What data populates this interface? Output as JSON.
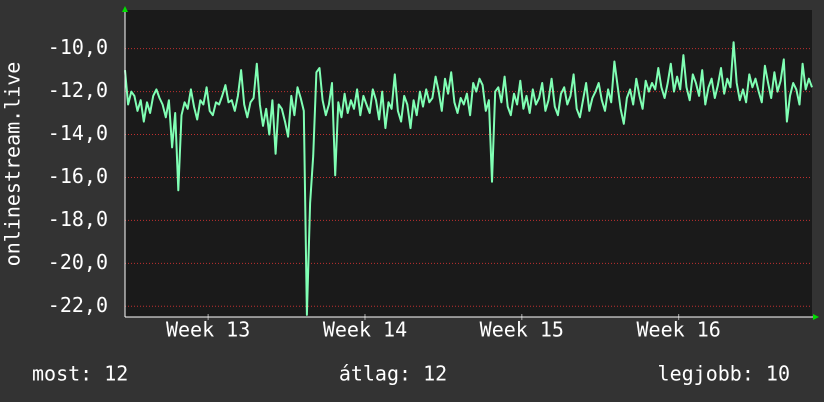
{
  "chart_data": {
    "type": "line",
    "y_label": "onlinestream.live",
    "color": "#80ffb4",
    "grid": true,
    "values": [
      -11.0,
      -12.6,
      -12.0,
      -12.2,
      -12.9,
      -12.4,
      -13.4,
      -12.5,
      -13.0,
      -12.2,
      -11.9,
      -12.3,
      -12.6,
      -13.2,
      -12.4,
      -14.6,
      -13.0,
      -16.6,
      -13.1,
      -12.5,
      -12.8,
      -11.9,
      -12.7,
      -13.3,
      -12.4,
      -12.6,
      -11.8,
      -12.9,
      -13.1,
      -12.5,
      -12.6,
      -12.2,
      -11.7,
      -12.5,
      -12.4,
      -12.9,
      -12.2,
      -11.0,
      -12.6,
      -13.2,
      -12.5,
      -12.3,
      -10.7,
      -12.6,
      -13.6,
      -12.8,
      -14.0,
      -12.4,
      -14.9,
      -12.6,
      -12.8,
      -13.4,
      -14.1,
      -12.2,
      -13.1,
      -11.8,
      -12.3,
      -12.9,
      -22.4,
      -17.2,
      -15.0,
      -11.1,
      -10.9,
      -12.4,
      -13.1,
      -12.6,
      -11.6,
      -15.9,
      -12.5,
      -13.2,
      -12.1,
      -13.0,
      -12.4,
      -12.8,
      -11.9,
      -13.1,
      -12.2,
      -12.6,
      -13.0,
      -11.9,
      -12.4,
      -13.3,
      -12.0,
      -13.7,
      -12.5,
      -12.8,
      -11.2,
      -12.9,
      -13.4,
      -12.2,
      -12.6,
      -13.7,
      -12.4,
      -13.1,
      -12.0,
      -12.7,
      -11.9,
      -12.5,
      -12.3,
      -11.3,
      -12.0,
      -12.9,
      -11.4,
      -12.1,
      -11.1,
      -12.5,
      -13.0,
      -12.3,
      -12.6,
      -12.1,
      -13.1,
      -11.6,
      -12.0,
      -11.4,
      -11.7,
      -12.9,
      -12.4,
      -16.2,
      -12.0,
      -11.8,
      -12.5,
      -11.3,
      -12.7,
      -13.1,
      -12.1,
      -12.6,
      -11.5,
      -12.8,
      -12.2,
      -13.0,
      -11.9,
      -12.6,
      -12.3,
      -11.6,
      -12.9,
      -12.4,
      -11.4,
      -12.7,
      -13.1,
      -12.1,
      -11.8,
      -12.6,
      -12.2,
      -11.2,
      -12.8,
      -13.2,
      -12.4,
      -11.6,
      -12.9,
      -12.3,
      -12.0,
      -11.6,
      -12.4,
      -12.9,
      -11.9,
      -12.5,
      -10.6,
      -11.7,
      -12.8,
      -13.5,
      -12.3,
      -11.9,
      -12.6,
      -11.4,
      -12.2,
      -12.8,
      -11.5,
      -12.0,
      -11.6,
      -11.9,
      -10.9,
      -11.8,
      -12.3,
      -11.6,
      -10.7,
      -12.0,
      -11.3,
      -11.9,
      -10.3,
      -11.8,
      -12.4,
      -11.2,
      -11.6,
      -12.2,
      -11.0,
      -12.6,
      -11.8,
      -11.4,
      -12.3,
      -11.7,
      -10.9,
      -12.1,
      -11.4,
      -11.8,
      -9.7,
      -11.6,
      -12.4,
      -11.9,
      -12.5,
      -11.2,
      -11.8,
      -11.4,
      -12.0,
      -12.5,
      -10.8,
      -11.6,
      -12.3,
      -11.1,
      -12.0,
      -11.5,
      -10.5,
      -13.4,
      -12.2,
      -11.6,
      -11.9,
      -12.6,
      -10.7,
      -11.9,
      -11.4,
      -11.8
    ],
    "xlim": [
      0,
      219
    ],
    "xticks": [
      {
        "value": 26.5,
        "label": "Week 13"
      },
      {
        "value": 76.5,
        "label": "Week 14"
      },
      {
        "value": 126.5,
        "label": "Week 15"
      },
      {
        "value": 176.5,
        "label": "Week 16"
      }
    ],
    "ylim": [
      -22.5,
      -8.2
    ],
    "yticks": [
      {
        "value": -10,
        "label": "-10,0"
      },
      {
        "value": -12,
        "label": "-12,0"
      },
      {
        "value": -14,
        "label": "-14,0"
      },
      {
        "value": -16,
        "label": "-16,0"
      },
      {
        "value": -18,
        "label": "-18,0"
      },
      {
        "value": -20,
        "label": "-20,0"
      },
      {
        "value": -22,
        "label": "-22,0"
      }
    ],
    "stats": [
      "most: 12",
      "átlag: 12",
      "legjobb: 10"
    ]
  }
}
